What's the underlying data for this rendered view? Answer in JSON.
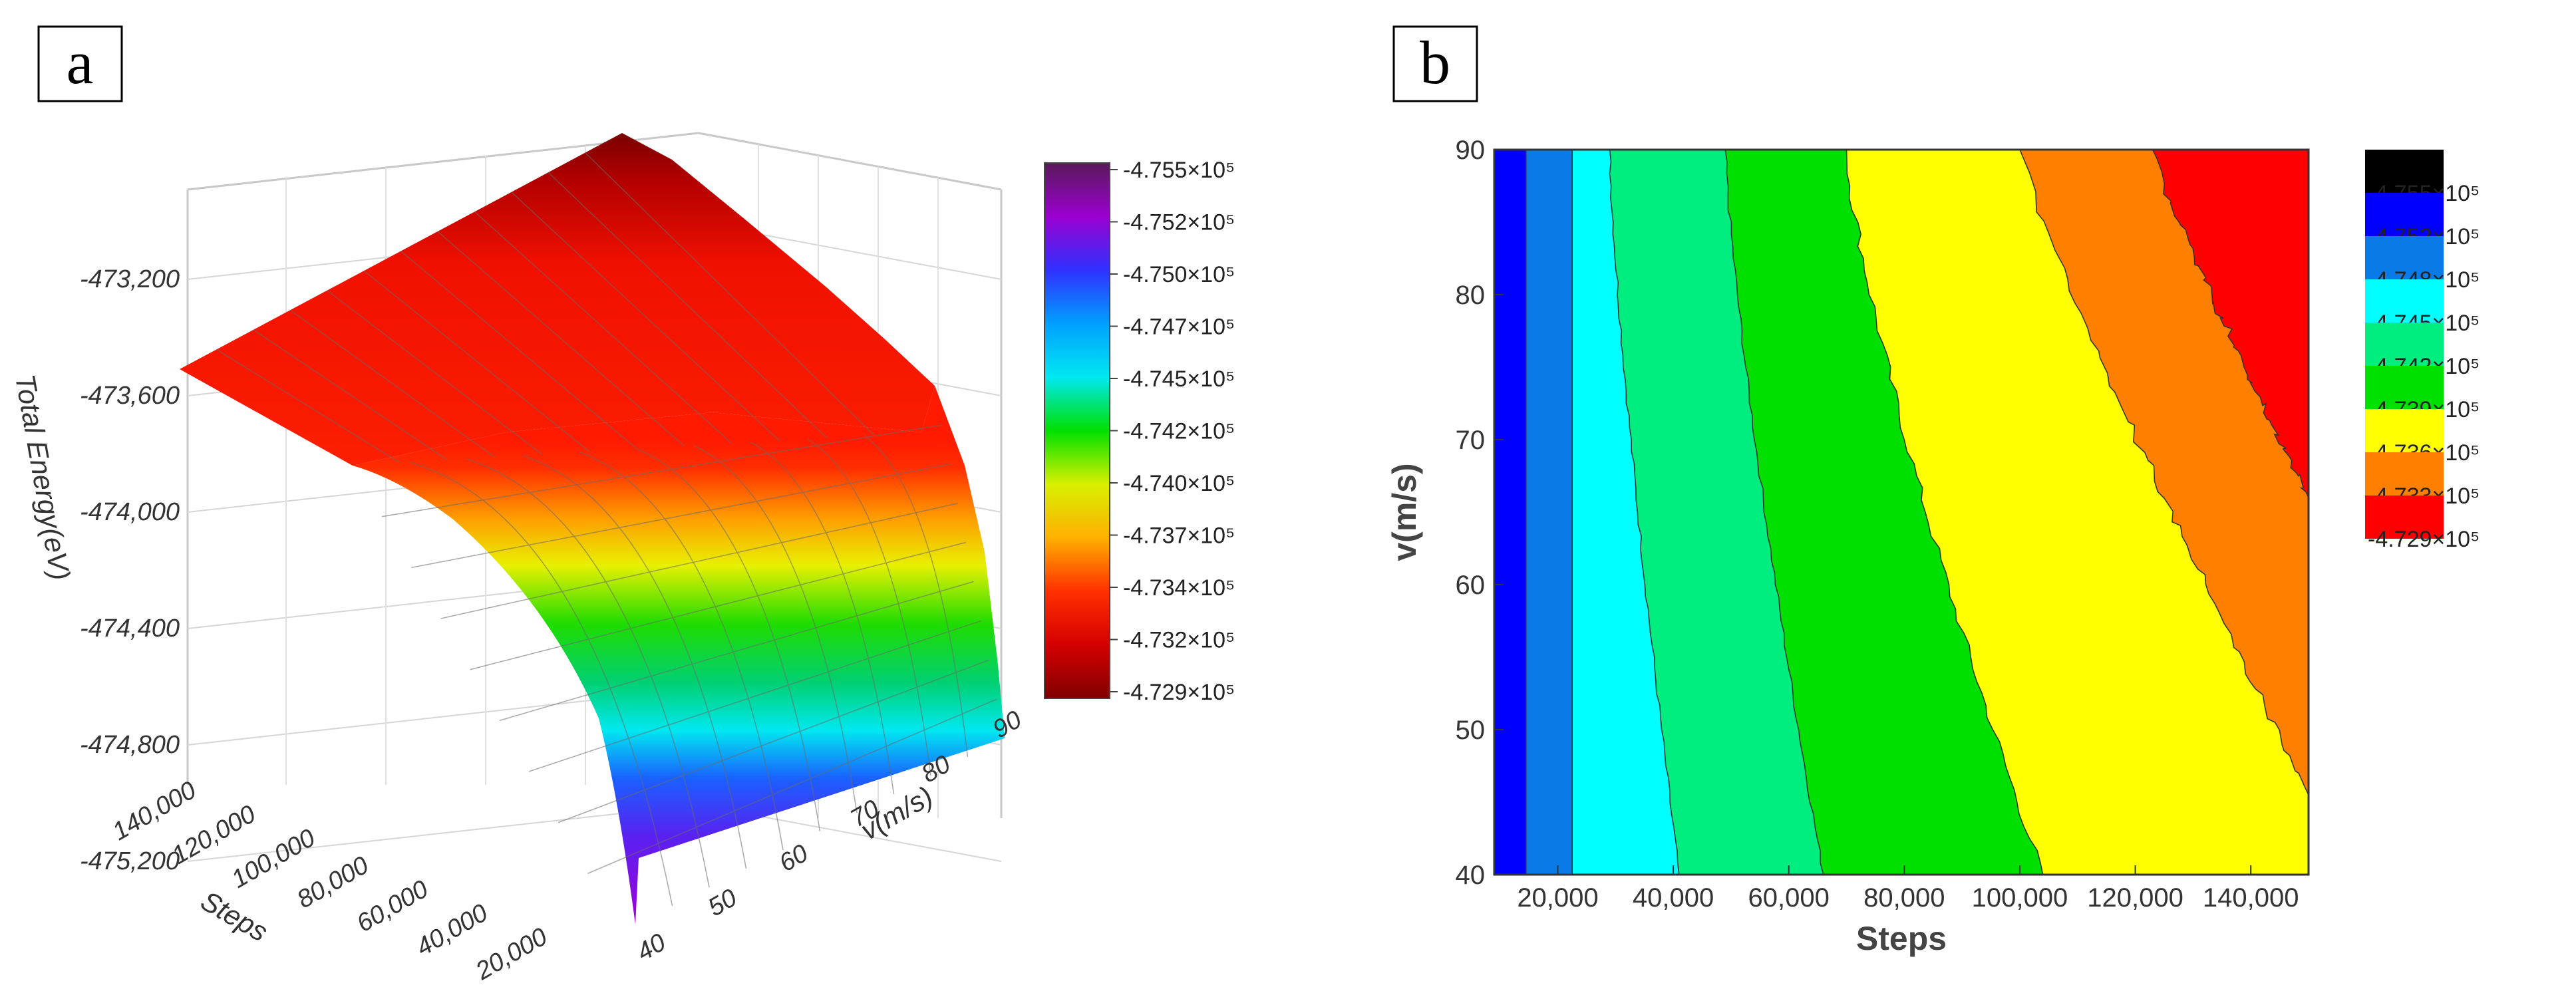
{
  "panels": [
    {
      "label": "a"
    },
    {
      "label": "b"
    }
  ],
  "chart_data": [
    {
      "type": "surface",
      "panel": "a",
      "zlabel": "Total Energy(eV)",
      "xlabel": "Steps",
      "ylabel": "v(m/s)",
      "z_ticks": [
        "-473,200",
        "-473,600",
        "-474,000",
        "-474,400",
        "-474,800",
        "-475,200"
      ],
      "z_tick_values": [
        -473200,
        -473600,
        -474000,
        -474400,
        -474800,
        -475200
      ],
      "x_ticks": [
        "140,000",
        "120,000",
        "100,000",
        "80,000",
        "60,000",
        "40,000",
        "20,000"
      ],
      "x_tick_values": [
        140000,
        120000,
        100000,
        80000,
        60000,
        40000,
        20000
      ],
      "y_ticks": [
        "40",
        "50",
        "60",
        "70",
        "80",
        "90"
      ],
      "y_tick_values": [
        40,
        50,
        60,
        70,
        80,
        90
      ],
      "xlim": [
        10000,
        150000
      ],
      "ylim": [
        40,
        90
      ],
      "zlim": [
        -475300,
        -473000
      ],
      "colorbar": {
        "labels": [
          "-4.755×10⁵",
          "-4.752×10⁵",
          "-4.750×10⁵",
          "-4.747×10⁵",
          "-4.745×10⁵",
          "-4.742×10⁵",
          "-4.740×10⁵",
          "-4.737×10⁵",
          "-4.734×10⁵",
          "-4.732×10⁵",
          "-4.729×10⁵"
        ],
        "values": [
          -475500,
          -475200,
          -475000,
          -474700,
          -474500,
          -474200,
          -474000,
          -473700,
          -473400,
          -473200,
          -472900
        ],
        "colors": [
          "#5a1a5a",
          "#9a00d0",
          "#3030ff",
          "#00a0ff",
          "#00e8f0",
          "#00e000",
          "#d8f000",
          "#ffb000",
          "#ff3000",
          "#d40000",
          "#800000"
        ]
      }
    },
    {
      "type": "contour",
      "panel": "b",
      "xlabel": "Steps",
      "ylabel": "v(m/s)",
      "x_ticks": [
        "20,000",
        "40,000",
        "60,000",
        "80,000",
        "100,000",
        "120,000",
        "140,000"
      ],
      "x_tick_values": [
        20000,
        40000,
        60000,
        80000,
        100000,
        120000,
        140000
      ],
      "y_ticks": [
        "40",
        "50",
        "60",
        "70",
        "80",
        "90"
      ],
      "y_tick_values": [
        40,
        50,
        60,
        70,
        80,
        90
      ],
      "xlim": [
        9000,
        150000
      ],
      "ylim": [
        40,
        90
      ],
      "levels": [
        {
          "label": "-4.755×10⁵",
          "color": "#000000"
        },
        {
          "label": "-4.752×10⁵",
          "color": "#0000ff"
        },
        {
          "label": "-4.748×10⁵",
          "color": "#0a7ae6"
        },
        {
          "label": "-4.745×10⁵",
          "color": "#00ffff"
        },
        {
          "label": "-4.742×10⁵",
          "color": "#00ee80"
        },
        {
          "label": "-4.739×10⁵",
          "color": "#00e000"
        },
        {
          "label": "-4.736×10⁵",
          "color": "#ffff00"
        },
        {
          "label": "-4.733×10⁵",
          "color": "#ff8000"
        },
        {
          "label": "-4.729×10⁵",
          "color": "#ff0000"
        }
      ],
      "band_fill_colors": [
        "#0000ff",
        "#0a7ae6",
        "#00ffff",
        "#00ee80",
        "#00e000",
        "#ffff00",
        "#ff8000",
        "#ff0000"
      ],
      "boundaries": [
        {
          "steps_at_v40": 14500,
          "steps_at_v90": 14500
        },
        {
          "steps_at_v40": 22500,
          "steps_at_v90": 22500
        },
        {
          "steps_at_v40": 41000,
          "steps_at_v90": 29000
        },
        {
          "steps_at_v40": 66000,
          "steps_at_v90": 49000
        },
        {
          "steps_at_v40": 104000,
          "steps_at_v90": 70000
        },
        {
          "steps_at_v40": 150000,
          "v_at_max_steps": 45.5,
          "steps_at_v90": 100000
        },
        {
          "steps_at_v40": 150000,
          "v_at_max_steps": 66,
          "steps_at_v90": 123000
        }
      ]
    }
  ]
}
